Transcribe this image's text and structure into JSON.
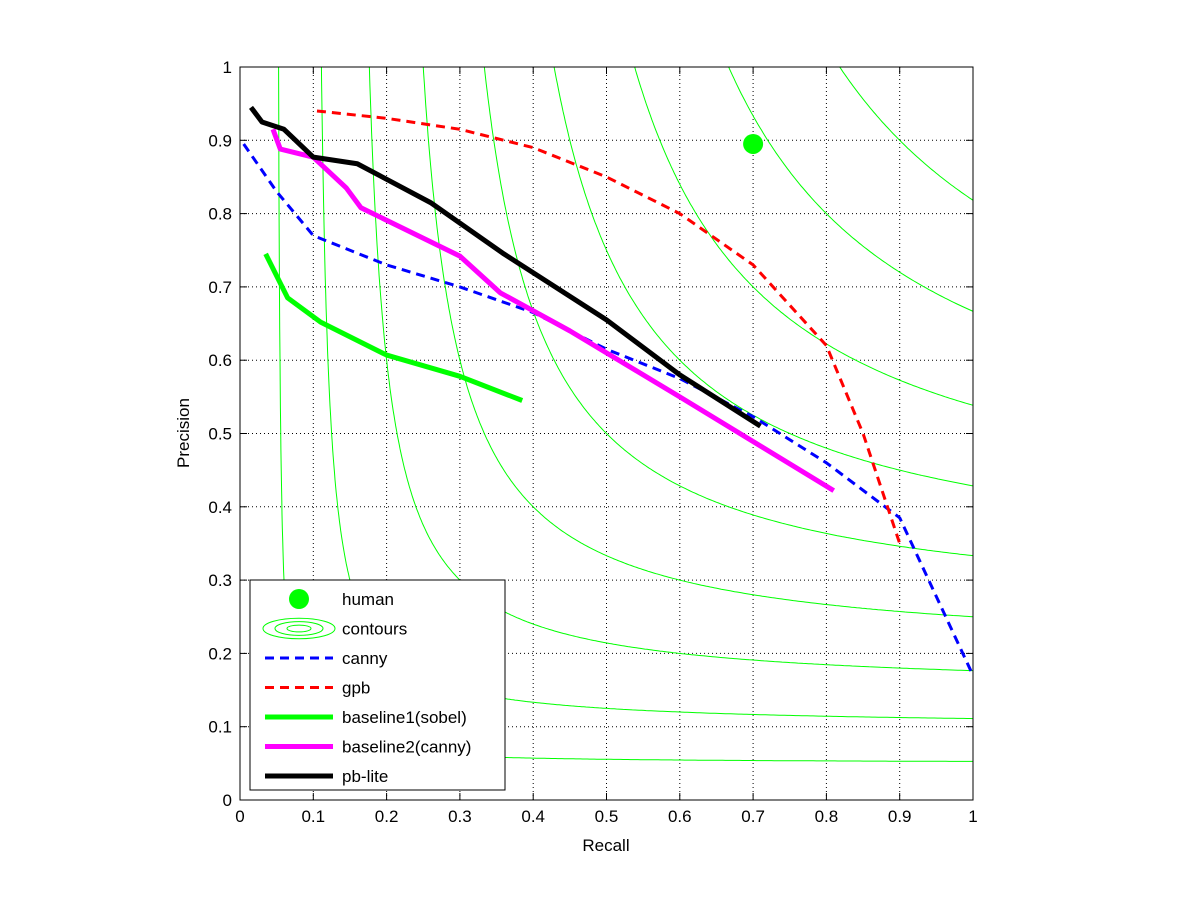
{
  "chart_data": {
    "type": "line",
    "title": "",
    "xlabel": "Recall",
    "ylabel": "Precision",
    "xlim": [
      0,
      1
    ],
    "ylim": [
      0,
      1
    ],
    "grid": true,
    "xticks": [
      "0",
      "0.1",
      "0.2",
      "0.3",
      "0.4",
      "0.5",
      "0.6",
      "0.7",
      "0.8",
      "0.9",
      "1"
    ],
    "yticks": [
      "0",
      "0.1",
      "0.2",
      "0.3",
      "0.4",
      "0.5",
      "0.6",
      "0.7",
      "0.8",
      "0.9",
      "1"
    ],
    "legend_position": "bottom-left",
    "contour_f_values": [
      0.1,
      0.2,
      0.3,
      0.4,
      0.5,
      0.6,
      0.7,
      0.8,
      0.9
    ],
    "contour_color": "#00ff00",
    "human": {
      "name": "human",
      "x": 0.7,
      "y": 0.895,
      "color": "#00ff00"
    },
    "contours_label": "contours",
    "series": [
      {
        "name": "canny",
        "color": "#0000ff",
        "style": "dashed",
        "width": 3,
        "x": [
          0.005,
          0.05,
          0.1,
          0.2,
          0.3,
          0.4,
          0.5,
          0.6,
          0.7,
          0.8,
          0.9,
          1.0
        ],
        "y": [
          0.895,
          0.83,
          0.77,
          0.73,
          0.7,
          0.665,
          0.615,
          0.575,
          0.523,
          0.46,
          0.385,
          0.17
        ]
      },
      {
        "name": "gpb",
        "color": "#ff0000",
        "style": "dashed",
        "width": 3,
        "x": [
          0.105,
          0.2,
          0.3,
          0.4,
          0.5,
          0.6,
          0.7,
          0.8,
          0.85,
          0.9
        ],
        "y": [
          0.94,
          0.93,
          0.915,
          0.89,
          0.85,
          0.8,
          0.73,
          0.62,
          0.5,
          0.35
        ]
      },
      {
        "name": "baseline1(sobel)",
        "color": "#00ff00",
        "style": "solid",
        "width": 5,
        "x": [
          0.035,
          0.065,
          0.11,
          0.2,
          0.3,
          0.385
        ],
        "y": [
          0.745,
          0.685,
          0.652,
          0.607,
          0.578,
          0.545
        ]
      },
      {
        "name": "baseline2(canny)",
        "color": "#ff00ff",
        "style": "solid",
        "width": 5,
        "x": [
          0.045,
          0.055,
          0.1,
          0.145,
          0.165,
          0.3,
          0.355,
          0.45,
          0.6,
          0.81
        ],
        "y": [
          0.915,
          0.888,
          0.877,
          0.835,
          0.808,
          0.742,
          0.692,
          0.64,
          0.55,
          0.422
        ]
      },
      {
        "name": "pb-lite",
        "color": "#000000",
        "style": "solid",
        "width": 5,
        "x": [
          0.015,
          0.03,
          0.06,
          0.1,
          0.16,
          0.26,
          0.36,
          0.5,
          0.6,
          0.71
        ],
        "y": [
          0.945,
          0.925,
          0.915,
          0.877,
          0.868,
          0.815,
          0.745,
          0.655,
          0.58,
          0.51
        ]
      }
    ]
  }
}
